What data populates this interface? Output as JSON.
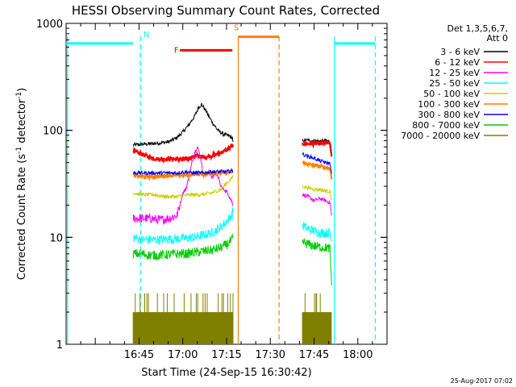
{
  "chart_data": {
    "type": "line",
    "title": "HESSI Observing Summary Count Rates, Corrected",
    "xlabel": "Start Time (24-Sep-15 16:30:42)",
    "ylabel": "Corrected Count Rate (s⁻¹ detector⁻¹)",
    "ylabel_parts": [
      "Corrected Count Rate (s",
      "-1",
      " detector",
      "-1",
      ")"
    ],
    "footer": "25-Aug-2017 07:02",
    "yscale": "log",
    "ylim": [
      1,
      1000
    ],
    "xlim_min": [
      -10,
      100
    ],
    "x_ticks": [
      {
        "min": 15,
        "label": "16:45"
      },
      {
        "min": 30,
        "label": "17:00"
      },
      {
        "min": 45,
        "label": "17:15"
      },
      {
        "min": 60,
        "label": "17:30"
      },
      {
        "min": 75,
        "label": "17:45"
      },
      {
        "min": 90,
        "label": "18:00"
      }
    ],
    "y_ticks": [
      {
        "value": 1,
        "label": "1"
      },
      {
        "value": 10,
        "label": "10"
      },
      {
        "value": 100,
        "label": "100"
      },
      {
        "value": 1000,
        "label": "1000"
      }
    ],
    "legend_header": [
      "Det 1,3,5,6,7,",
      "Att 0"
    ],
    "legend_position": "right, outside plot",
    "series": [
      {
        "name": "3 - 6 keV",
        "color": "#000000",
        "points": [
          [
            13,
            73
          ],
          [
            16,
            74
          ],
          [
            19,
            75
          ],
          [
            22,
            76
          ],
          [
            25,
            78
          ],
          [
            28,
            85
          ],
          [
            30,
            97
          ],
          [
            32,
            112
          ],
          [
            34,
            135
          ],
          [
            35.5,
            165
          ],
          [
            36.5,
            175
          ],
          [
            38,
            150
          ],
          [
            40,
            120
          ],
          [
            42,
            100
          ],
          [
            44,
            92
          ],
          [
            46,
            88
          ],
          [
            47,
            85
          ],
          [
            47.2,
            75
          ],
          null,
          [
            71,
            80
          ],
          [
            73,
            81
          ],
          [
            75,
            80
          ],
          [
            77,
            79
          ],
          [
            79,
            80
          ],
          [
            80.5,
            79
          ],
          [
            81,
            62
          ]
        ]
      },
      {
        "name": "6 - 12 keV",
        "color": "#ff0000",
        "points": [
          [
            13,
            64
          ],
          [
            16,
            60
          ],
          [
            18,
            57
          ],
          [
            21,
            54
          ],
          [
            24,
            54
          ],
          [
            27,
            54
          ],
          [
            30,
            53
          ],
          [
            33,
            56
          ],
          [
            35,
            58
          ],
          [
            37,
            56
          ],
          [
            40,
            58
          ],
          [
            43,
            62
          ],
          [
            45,
            65
          ],
          [
            47,
            72
          ],
          [
            47.2,
            68
          ],
          null,
          [
            71,
            75
          ],
          [
            74,
            75
          ],
          [
            77,
            75
          ],
          [
            80,
            76
          ],
          [
            80.5,
            75
          ],
          [
            81,
            55
          ]
        ]
      },
      {
        "name": "12 - 25 keV",
        "color": "#ff00ff",
        "points": [
          [
            13,
            15
          ],
          [
            16,
            15
          ],
          [
            19,
            15
          ],
          [
            22,
            14.5
          ],
          [
            25,
            15
          ],
          [
            28,
            16
          ],
          [
            29,
            20
          ],
          [
            30,
            26
          ],
          [
            31,
            28
          ],
          [
            32,
            35
          ],
          [
            33,
            48
          ],
          [
            34,
            62
          ],
          [
            35,
            70
          ],
          [
            36,
            58
          ],
          [
            37,
            38
          ],
          [
            38,
            40
          ],
          [
            39,
            42
          ],
          [
            40,
            36
          ],
          [
            41,
            40
          ],
          [
            42,
            38
          ],
          [
            43,
            30
          ],
          [
            44,
            28
          ],
          [
            45,
            27
          ],
          [
            46,
            24
          ],
          [
            47,
            21
          ],
          [
            47.2,
            20
          ],
          null,
          [
            71,
            25
          ],
          [
            73,
            24
          ],
          [
            75,
            22
          ],
          [
            77,
            23
          ],
          [
            79,
            22
          ],
          [
            80.5,
            21
          ],
          [
            81,
            16
          ]
        ]
      },
      {
        "name": "25 - 50 keV",
        "color": "#00ffff",
        "points": [
          [
            13,
            10
          ],
          [
            16,
            9.5
          ],
          [
            19,
            9.5
          ],
          [
            22,
            9.5
          ],
          [
            25,
            9.6
          ],
          [
            28,
            9.7
          ],
          [
            31,
            9.8
          ],
          [
            34,
            10
          ],
          [
            37,
            10.5
          ],
          [
            40,
            11
          ],
          [
            43,
            12.5
          ],
          [
            45,
            14
          ],
          [
            47,
            16.5
          ],
          [
            47.2,
            18
          ],
          null,
          [
            71,
            13
          ],
          [
            73,
            12
          ],
          [
            75,
            11.5
          ],
          [
            77,
            11
          ],
          [
            79,
            11
          ],
          [
            80.5,
            11
          ],
          [
            81,
            9
          ]
        ]
      },
      {
        "name": "50 - 100 keV",
        "color": "#cccc00",
        "points": [
          [
            13,
            26
          ],
          [
            16,
            25
          ],
          [
            20,
            25
          ],
          [
            24,
            24
          ],
          [
            28,
            24
          ],
          [
            32,
            25
          ],
          [
            36,
            25
          ],
          [
            40,
            26
          ],
          [
            43,
            28
          ],
          [
            45,
            32
          ],
          [
            47,
            36
          ],
          [
            47.2,
            38
          ],
          null,
          [
            71,
            30
          ],
          [
            73,
            29
          ],
          [
            75,
            28
          ],
          [
            77,
            28
          ],
          [
            79,
            27
          ],
          [
            80.5,
            27
          ],
          [
            81,
            22
          ]
        ]
      },
      {
        "name": "100 - 300 keV",
        "color": "#ff8000",
        "points": [
          [
            13,
            38
          ],
          [
            16,
            37
          ],
          [
            19,
            37
          ],
          [
            22,
            37
          ],
          [
            25,
            38
          ],
          [
            28,
            38
          ],
          [
            31,
            38
          ],
          [
            34,
            39
          ],
          [
            37,
            39
          ],
          [
            40,
            40
          ],
          [
            43,
            40
          ],
          [
            45,
            40
          ],
          [
            47,
            41
          ],
          [
            47.2,
            40
          ],
          null,
          [
            71,
            50
          ],
          [
            73,
            48
          ],
          [
            75,
            47
          ],
          [
            77,
            46
          ],
          [
            79,
            45
          ],
          [
            80.5,
            44
          ],
          [
            81,
            35
          ]
        ]
      },
      {
        "name": "300 - 800 keV",
        "color": "#0000ff",
        "points": [
          [
            13,
            40
          ],
          [
            16,
            40
          ],
          [
            19,
            40
          ],
          [
            22,
            40
          ],
          [
            25,
            40
          ],
          [
            28,
            40
          ],
          [
            31,
            41
          ],
          [
            34,
            40
          ],
          [
            37,
            40
          ],
          [
            40,
            41
          ],
          [
            43,
            41
          ],
          [
            45,
            41
          ],
          [
            47,
            42
          ],
          [
            47.2,
            42
          ],
          null,
          [
            71,
            60
          ],
          [
            73,
            57
          ],
          [
            75,
            55
          ],
          [
            77,
            52
          ],
          [
            79,
            50
          ],
          [
            80.5,
            49
          ],
          [
            81,
            38
          ]
        ]
      },
      {
        "name": "800 - 7000 keV",
        "color": "#00cc00",
        "points": [
          [
            13,
            7
          ],
          [
            16,
            7
          ],
          [
            19,
            6.8
          ],
          [
            22,
            6.8
          ],
          [
            25,
            6.9
          ],
          [
            28,
            7
          ],
          [
            31,
            7
          ],
          [
            34,
            7.2
          ],
          [
            37,
            7.4
          ],
          [
            40,
            7.6
          ],
          [
            43,
            8
          ],
          [
            45,
            8.5
          ],
          [
            47,
            9.5
          ],
          [
            47.2,
            9.8
          ],
          null,
          [
            71,
            9
          ],
          [
            73,
            8.6
          ],
          [
            75,
            8.3
          ],
          [
            77,
            8.1
          ],
          [
            79,
            8
          ],
          [
            80.5,
            7.8
          ],
          [
            81,
            3.5
          ]
        ]
      },
      {
        "name": "7000 - 20000 keV",
        "color": "#808000",
        "fill_band": true,
        "points": [
          [
            13,
            2
          ],
          [
            47.2,
            2
          ],
          null,
          [
            71,
            2
          ],
          [
            81,
            2
          ]
        ],
        "band_low": 1,
        "peaks": [
          3
        ]
      }
    ],
    "intervals": [
      {
        "label": "N",
        "color": "#00ffff",
        "level": 650,
        "x_start": -10,
        "x_end": 13,
        "x_end_line": 47,
        "dashed_start": 16
      },
      {
        "label": "F",
        "color": "#ff0000",
        "level": 560,
        "x_start": 29,
        "x_end": 47
      },
      {
        "label": "S",
        "color": "#ff8000",
        "level": 750,
        "x_start": 49,
        "x_end": 63,
        "dashed_end": 63
      },
      {
        "label": "",
        "color": "#00ffff",
        "level": 650,
        "x_start": 82,
        "x_end": 96,
        "dashed_end": 96
      }
    ],
    "vlines": [
      {
        "x": -9.5,
        "color": "#00ffff",
        "style": "solid"
      },
      {
        "x": 15.5,
        "color": "#00ffff",
        "style": "dashed"
      },
      {
        "x": 49,
        "color": "#ff8000",
        "style": "solid"
      },
      {
        "x": 63,
        "color": "#ff8000",
        "style": "dashed"
      },
      {
        "x": 82,
        "color": "#00ffff",
        "style": "solid"
      },
      {
        "x": 96,
        "color": "#00ffff",
        "style": "dashed"
      }
    ],
    "grid": false
  }
}
